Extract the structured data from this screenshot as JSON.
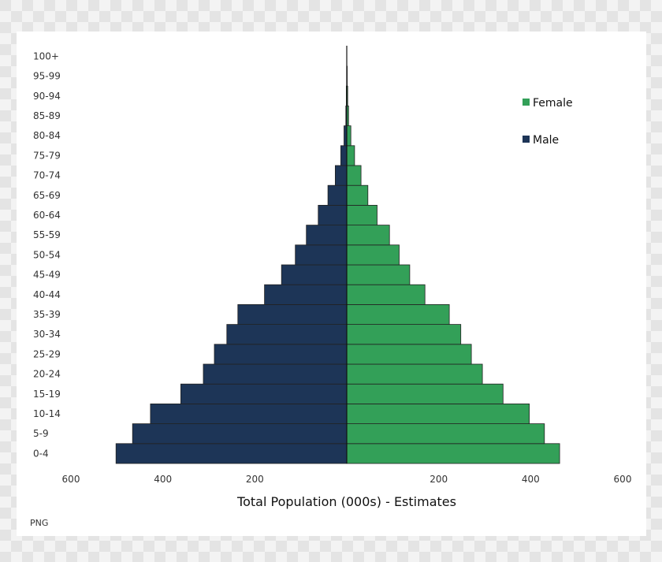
{
  "watermark": "PNG",
  "colors": {
    "male": "#1d3557",
    "female": "#33a058",
    "axis": "#333333"
  },
  "chart_data": {
    "type": "bar",
    "orientation": "horizontal-pyramid",
    "categories": [
      "0-4",
      "5-9",
      "10-14",
      "15-19",
      "20-24",
      "25-29",
      "30-34",
      "35-39",
      "40-44",
      "45-49",
      "50-54",
      "55-59",
      "60-64",
      "65-69",
      "70-74",
      "75-79",
      "80-84",
      "85-89",
      "90-94",
      "95-99",
      "100+"
    ],
    "series": [
      {
        "name": "Male",
        "side": "left",
        "color": "#1d3557",
        "values": [
          502,
          466,
          427,
          361,
          312,
          288,
          261,
          237,
          179,
          142,
          112,
          88,
          62,
          41,
          25,
          13,
          6,
          2,
          1,
          0,
          0
        ]
      },
      {
        "name": "Female",
        "side": "right",
        "color": "#33a058",
        "values": [
          463,
          430,
          397,
          340,
          295,
          271,
          248,
          223,
          170,
          137,
          114,
          93,
          66,
          46,
          31,
          17,
          9,
          4,
          2,
          1,
          0
        ]
      }
    ],
    "xlabel": "Total Population (000s) - Estimates",
    "xlim": [
      -600,
      600
    ],
    "xticks": [
      -600,
      -400,
      -200,
      200,
      400,
      600
    ],
    "xtick_labels": [
      "600",
      "400",
      "200",
      "200",
      "400",
      "600"
    ],
    "legend": {
      "placement": "top-right",
      "order": [
        "Female",
        "Male"
      ]
    },
    "grid": false
  }
}
